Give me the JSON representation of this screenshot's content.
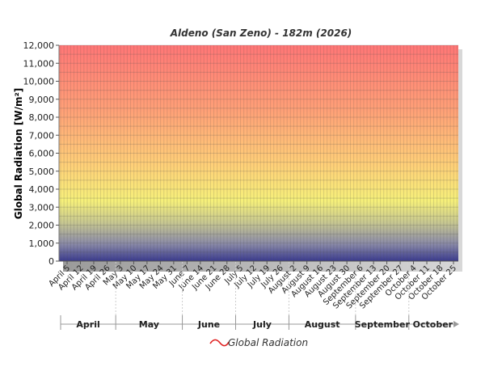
{
  "chart_data": {
    "type": "area",
    "title": "Aldeno (San Zeno) - 182m (2026)",
    "ylabel": "Global Radiation [W/m²]",
    "xlabel": "",
    "ylim": [
      0,
      12000
    ],
    "yticks": [
      0,
      1000,
      2000,
      3000,
      4000,
      5000,
      6000,
      7000,
      8000,
      9000,
      10000,
      11000,
      12000
    ],
    "ytick_labels": [
      "0",
      "1,000",
      "2,000",
      "3,000",
      "4,000",
      "5,000",
      "6,000",
      "7,000",
      "8,000",
      "9,000",
      "10,000",
      "11,000",
      "12,000"
    ],
    "x_ticks": [
      "April 5",
      "April 12",
      "April 19",
      "April 26",
      "May 3",
      "May 10",
      "May 17",
      "May 24",
      "May 31",
      "June 7",
      "June 14",
      "June 21",
      "June 28",
      "July 5",
      "July 12",
      "July 19",
      "July 26",
      "August 2",
      "August 9",
      "August 16",
      "August 23",
      "August 30",
      "September 6",
      "September 13",
      "September 20",
      "September 27",
      "October 4",
      "October 11",
      "October 18",
      "October 25"
    ],
    "months": [
      "April",
      "May",
      "June",
      "July",
      "August",
      "September",
      "October"
    ],
    "series": [
      {
        "name": "Global Radiation",
        "color": "#ff0000",
        "values": []
      }
    ],
    "grid": true,
    "legend": "bottom-center",
    "background_gradient": [
      "#ff7070",
      "#ffa070",
      "#ffe070",
      "#f0f070",
      "#8080a0",
      "#303090"
    ]
  }
}
